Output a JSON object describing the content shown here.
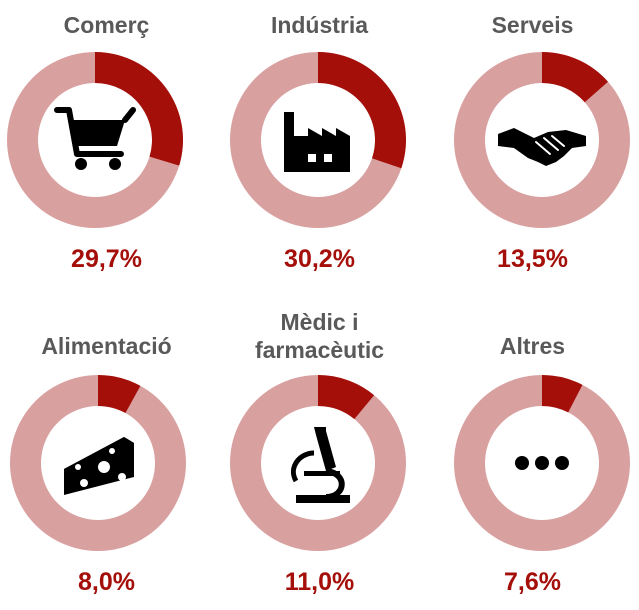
{
  "colors": {
    "accent": "#A50F0A",
    "remainder": "#D9A0A0",
    "title": "#595959",
    "icon": "#000000"
  },
  "chart_data": {
    "type": "pie",
    "variant": "donut",
    "items": [
      {
        "label": "Comerç",
        "value": 29.7,
        "value_label": "29,7%",
        "icon": "shopping-cart-icon"
      },
      {
        "label": "Indústria",
        "value": 30.2,
        "value_label": "30,2%",
        "icon": "factory-icon"
      },
      {
        "label": "Serveis",
        "value": 13.5,
        "value_label": "13,5%",
        "icon": "handshake-icon"
      },
      {
        "label": "Alimentació",
        "value": 8.0,
        "value_label": "8,0%",
        "icon": "cheese-icon"
      },
      {
        "label": "Mèdic i\nfarmacèutic",
        "value": 11.0,
        "value_label": "11,0%",
        "icon": "microscope-icon"
      },
      {
        "label": "Altres",
        "value": 7.6,
        "value_label": "7,6%",
        "icon": "ellipsis-icon"
      }
    ]
  }
}
